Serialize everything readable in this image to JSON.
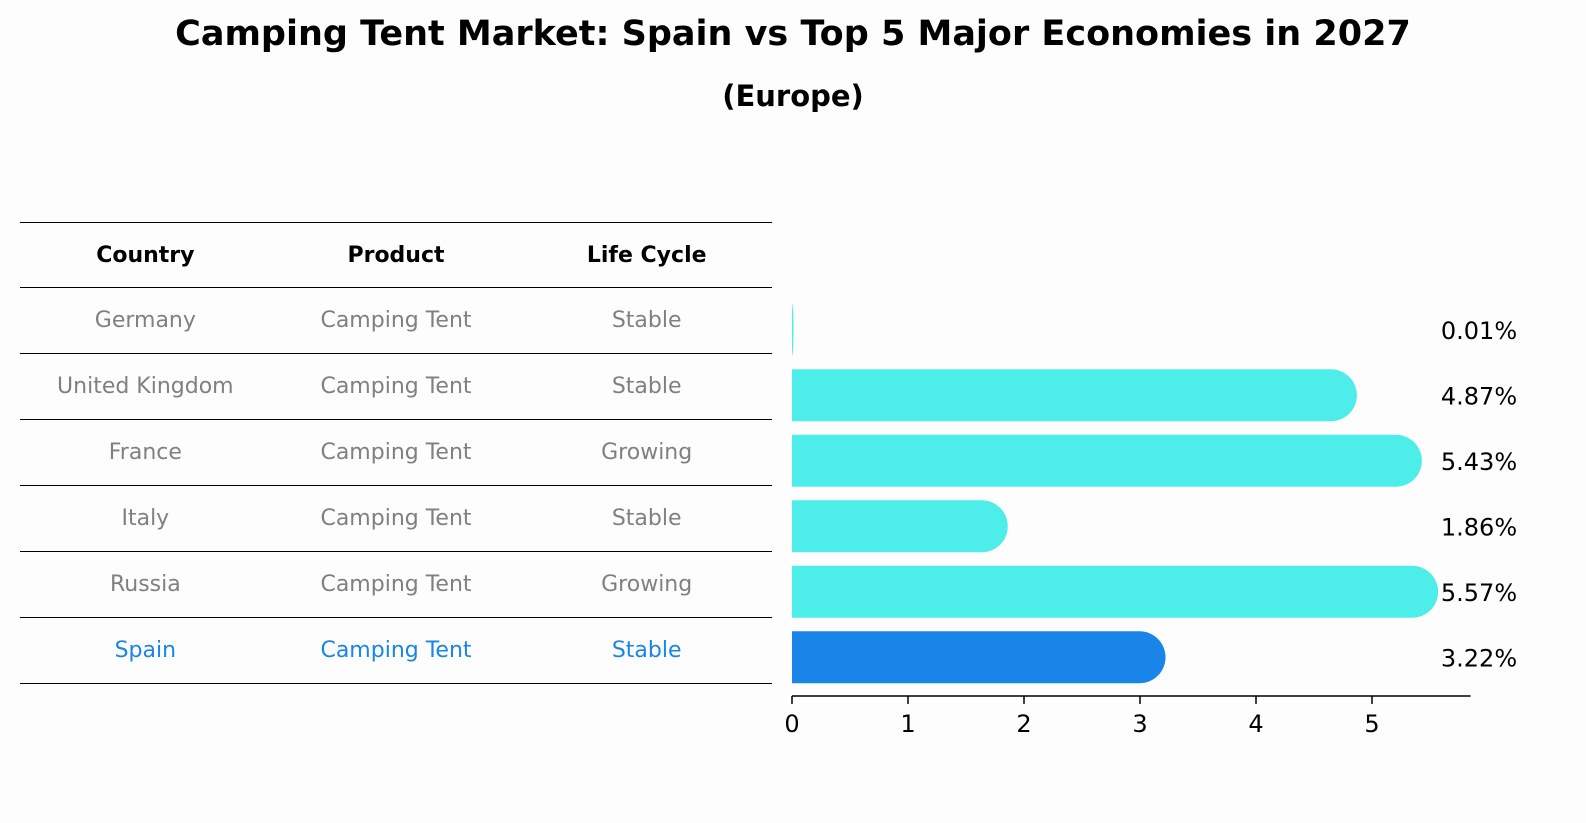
{
  "title": "Camping Tent Market: Spain vs Top 5 Major Economies in 2027",
  "subtitle": "(Europe)",
  "table": {
    "headers": [
      "Country",
      "Product",
      "Life Cycle"
    ],
    "rows": [
      [
        "Germany",
        "Camping Tent",
        "Stable"
      ],
      [
        "United Kingdom",
        "Camping Tent",
        "Stable"
      ],
      [
        "France",
        "Camping Tent",
        "Growing"
      ],
      [
        "Italy",
        "Camping Tent",
        "Stable"
      ],
      [
        "Russia",
        "Camping Tent",
        "Growing"
      ],
      [
        "Spain",
        "Camping Tent",
        "Stable"
      ]
    ],
    "highlight_row": 5
  },
  "colors": {
    "bar": "#4deee9",
    "highlight": "#1a85e8",
    "text_muted": "#808080"
  },
  "chart_data": {
    "type": "bar",
    "orientation": "horizontal",
    "categories": [
      "Germany",
      "United Kingdom",
      "France",
      "Italy",
      "Russia",
      "Spain"
    ],
    "values": [
      0.01,
      4.87,
      5.43,
      1.86,
      5.57,
      3.22
    ],
    "value_labels": [
      "0.01%",
      "4.87%",
      "5.43%",
      "1.86%",
      "5.57%",
      "3.22%"
    ],
    "highlight_index": 5,
    "xlim": [
      0,
      5.85
    ],
    "xticks": [
      "0",
      "1",
      "2",
      "3",
      "4",
      "5"
    ],
    "title": "Camping Tent Market: Spain vs Top 5 Major Economies in 2027",
    "subtitle": "(Europe)",
    "grid": false
  }
}
